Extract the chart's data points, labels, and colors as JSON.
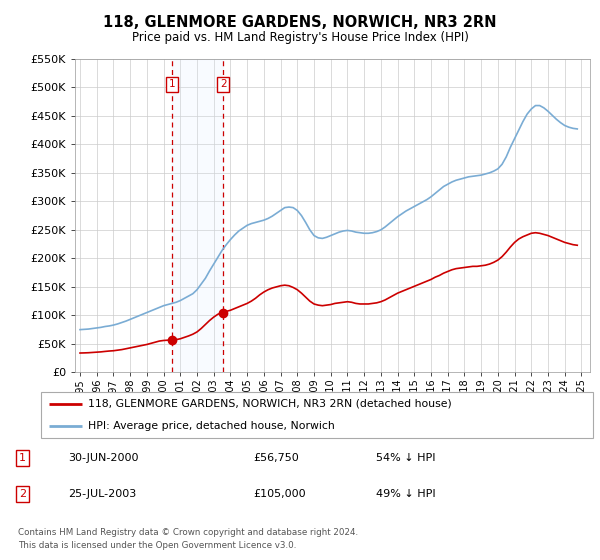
{
  "title": "118, GLENMORE GARDENS, NORWICH, NR3 2RN",
  "subtitle": "Price paid vs. HM Land Registry's House Price Index (HPI)",
  "sale1_price": 56750,
  "sale1_label": "30-JUN-2000",
  "sale1_pct": "54% ↓ HPI",
  "sale2_price": 105000,
  "sale2_label": "25-JUL-2003",
  "sale2_pct": "49% ↓ HPI",
  "legend_house": "118, GLENMORE GARDENS, NORWICH, NR3 2RN (detached house)",
  "legend_hpi": "HPI: Average price, detached house, Norwich",
  "footer1": "Contains HM Land Registry data © Crown copyright and database right 2024.",
  "footer2": "This data is licensed under the Open Government Licence v3.0.",
  "house_color": "#cc0000",
  "hpi_color": "#7aacd4",
  "sale_marker_color": "#cc0000",
  "vline_color": "#cc0000",
  "shade_color": "#ddeeff",
  "ylim": [
    0,
    550000
  ],
  "yticks": [
    0,
    50000,
    100000,
    150000,
    200000,
    250000,
    300000,
    350000,
    400000,
    450000,
    500000,
    550000
  ],
  "xlim_start": 1994.7,
  "xlim_end": 2025.5,
  "sale1_x": 2000.5,
  "sale2_x": 2003.56,
  "hpi_years": [
    1995.0,
    1995.25,
    1995.5,
    1995.75,
    1996.0,
    1996.25,
    1996.5,
    1996.75,
    1997.0,
    1997.25,
    1997.5,
    1997.75,
    1998.0,
    1998.25,
    1998.5,
    1998.75,
    1999.0,
    1999.25,
    1999.5,
    1999.75,
    2000.0,
    2000.25,
    2000.5,
    2000.75,
    2001.0,
    2001.25,
    2001.5,
    2001.75,
    2002.0,
    2002.25,
    2002.5,
    2002.75,
    2003.0,
    2003.25,
    2003.5,
    2003.75,
    2004.0,
    2004.25,
    2004.5,
    2004.75,
    2005.0,
    2005.25,
    2005.5,
    2005.75,
    2006.0,
    2006.25,
    2006.5,
    2006.75,
    2007.0,
    2007.25,
    2007.5,
    2007.75,
    2008.0,
    2008.25,
    2008.5,
    2008.75,
    2009.0,
    2009.25,
    2009.5,
    2009.75,
    2010.0,
    2010.25,
    2010.5,
    2010.75,
    2011.0,
    2011.25,
    2011.5,
    2011.75,
    2012.0,
    2012.25,
    2012.5,
    2012.75,
    2013.0,
    2013.25,
    2013.5,
    2013.75,
    2014.0,
    2014.25,
    2014.5,
    2014.75,
    2015.0,
    2015.25,
    2015.5,
    2015.75,
    2016.0,
    2016.25,
    2016.5,
    2016.75,
    2017.0,
    2017.25,
    2017.5,
    2017.75,
    2018.0,
    2018.25,
    2018.5,
    2018.75,
    2019.0,
    2019.25,
    2019.5,
    2019.75,
    2020.0,
    2020.25,
    2020.5,
    2020.75,
    2021.0,
    2021.25,
    2021.5,
    2021.75,
    2022.0,
    2022.25,
    2022.5,
    2022.75,
    2023.0,
    2023.25,
    2023.5,
    2023.75,
    2024.0,
    2024.25,
    2024.5,
    2024.75
  ],
  "hpi_values": [
    75000,
    75500,
    76000,
    77000,
    78000,
    79000,
    80500,
    81500,
    83000,
    85000,
    87500,
    90000,
    93000,
    96000,
    99000,
    102000,
    105000,
    108000,
    111000,
    114000,
    117000,
    119000,
    121000,
    123000,
    126000,
    130000,
    134000,
    138000,
    145000,
    155000,
    165000,
    178000,
    190000,
    202000,
    214000,
    224000,
    233000,
    241000,
    248000,
    253000,
    258000,
    261000,
    263000,
    265000,
    267000,
    270000,
    274000,
    279000,
    284000,
    289000,
    290000,
    289000,
    284000,
    275000,
    263000,
    250000,
    240000,
    236000,
    235000,
    237000,
    240000,
    243000,
    246000,
    248000,
    249000,
    248000,
    246000,
    245000,
    244000,
    244000,
    245000,
    247000,
    250000,
    255000,
    261000,
    267000,
    273000,
    278000,
    283000,
    287000,
    291000,
    295000,
    299000,
    303000,
    308000,
    314000,
    320000,
    326000,
    330000,
    334000,
    337000,
    339000,
    341000,
    343000,
    344000,
    345000,
    346000,
    348000,
    350000,
    353000,
    357000,
    365000,
    378000,
    395000,
    410000,
    425000,
    440000,
    453000,
    462000,
    468000,
    468000,
    464000,
    458000,
    451000,
    444000,
    438000,
    433000,
    430000,
    428000,
    427000
  ],
  "prop_years": [
    1995.0,
    1995.25,
    1995.5,
    1995.75,
    1996.0,
    1996.25,
    1996.5,
    1996.75,
    1997.0,
    1997.25,
    1997.5,
    1997.75,
    1998.0,
    1998.25,
    1998.5,
    1998.75,
    1999.0,
    1999.25,
    1999.5,
    1999.75,
    2000.0,
    2000.25,
    2000.5,
    2000.75,
    2001.0,
    2001.25,
    2001.5,
    2001.75,
    2002.0,
    2002.25,
    2002.5,
    2002.75,
    2003.0,
    2003.25,
    2003.5,
    2003.75,
    2004.0,
    2004.25,
    2004.5,
    2004.75,
    2005.0,
    2005.25,
    2005.5,
    2005.75,
    2006.0,
    2006.25,
    2006.5,
    2006.75,
    2007.0,
    2007.25,
    2007.5,
    2007.75,
    2008.0,
    2008.25,
    2008.5,
    2008.75,
    2009.0,
    2009.25,
    2009.5,
    2009.75,
    2010.0,
    2010.25,
    2010.5,
    2010.75,
    2011.0,
    2011.25,
    2011.5,
    2011.75,
    2012.0,
    2012.25,
    2012.5,
    2012.75,
    2013.0,
    2013.25,
    2013.5,
    2013.75,
    2014.0,
    2014.25,
    2014.5,
    2014.75,
    2015.0,
    2015.25,
    2015.5,
    2015.75,
    2016.0,
    2016.25,
    2016.5,
    2016.75,
    2017.0,
    2017.25,
    2017.5,
    2017.75,
    2018.0,
    2018.25,
    2018.5,
    2018.75,
    2019.0,
    2019.25,
    2019.5,
    2019.75,
    2020.0,
    2020.25,
    2020.5,
    2020.75,
    2021.0,
    2021.25,
    2021.5,
    2021.75,
    2022.0,
    2022.25,
    2022.5,
    2022.75,
    2023.0,
    2023.25,
    2023.5,
    2023.75,
    2024.0,
    2024.25,
    2024.5,
    2024.75
  ],
  "prop_values": [
    34000,
    34200,
    34500,
    35000,
    35500,
    36000,
    36800,
    37500,
    38000,
    39000,
    40000,
    41500,
    43000,
    44500,
    46000,
    47500,
    49000,
    51000,
    53000,
    55000,
    56000,
    56500,
    56750,
    57500,
    59000,
    61500,
    64000,
    67000,
    71000,
    77000,
    84000,
    91000,
    97000,
    102000,
    105000,
    107000,
    109000,
    112000,
    115000,
    118000,
    121000,
    125000,
    130000,
    136000,
    141000,
    145000,
    148000,
    150000,
    152000,
    153000,
    152000,
    149000,
    145000,
    139000,
    132000,
    125000,
    120000,
    118000,
    117000,
    118000,
    119000,
    121000,
    122000,
    123000,
    124000,
    123000,
    121000,
    120000,
    120000,
    120000,
    121000,
    122000,
    124000,
    127000,
    131000,
    135000,
    139000,
    142000,
    145000,
    148000,
    151000,
    154000,
    157000,
    160000,
    163000,
    167000,
    170000,
    174000,
    177000,
    180000,
    182000,
    183000,
    184000,
    185000,
    186000,
    186000,
    187000,
    188000,
    190000,
    193000,
    197000,
    203000,
    211000,
    220000,
    228000,
    234000,
    238000,
    241000,
    244000,
    245000,
    244000,
    242000,
    240000,
    237000,
    234000,
    231000,
    228000,
    226000,
    224000,
    223000
  ]
}
